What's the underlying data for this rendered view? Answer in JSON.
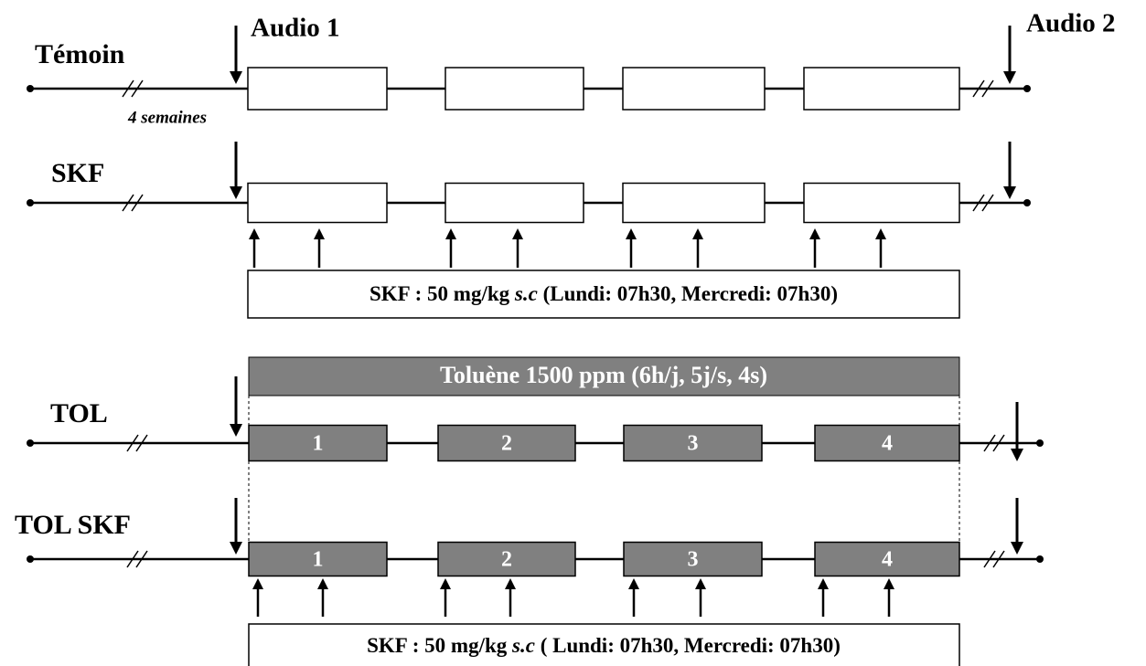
{
  "audio_1": "Audio 1",
  "audio_2": "Audio 2",
  "duration": "4 semaines",
  "rows": [
    {
      "label": "Témoin"
    },
    {
      "label": "SKF"
    },
    {
      "label": "TOL",
      "weeks": [
        "1",
        "2",
        "3",
        "4"
      ]
    },
    {
      "label": "TOL SKF",
      "weeks": [
        "1",
        "2",
        "3",
        "4"
      ]
    }
  ],
  "skf_box_1": {
    "prefix": "SKF : 50 mg/kg ",
    "italic": "s.c",
    "suffix": " (Lundi: 07h30, Mercredi: 07h30)"
  },
  "skf_box_2": {
    "prefix": "SKF : 50 mg/kg ",
    "italic": "s.c",
    "suffix": " ( Lundi: 07h30, Mercredi: 07h30)"
  },
  "toluene": "Toluène 1500 ppm (6h/j, 5j/s, 4s)"
}
